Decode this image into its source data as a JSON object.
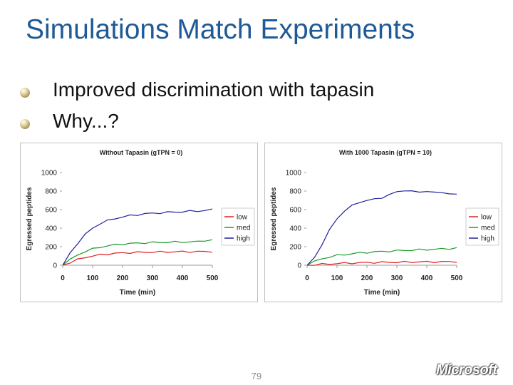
{
  "slide": {
    "title": "Simulations Match Experiments",
    "bullets": [
      {
        "text": "Improved discrimination with tapasin"
      },
      {
        "text": "Why...?"
      }
    ],
    "page_number": "79",
    "logo_text": "Microsoft"
  },
  "chart_data": [
    {
      "type": "line",
      "title": "Without Tapasin (gTPN = 0)",
      "xlabel": "Time (min)",
      "ylabel": "Egressed peptides",
      "xlim": [
        0,
        500
      ],
      "ylim": [
        0,
        1000
      ],
      "xticks": [
        0,
        100,
        200,
        300,
        400,
        500
      ],
      "yticks": [
        0,
        200,
        400,
        600,
        800,
        1000
      ],
      "legend_position": "right",
      "x": [
        0,
        25,
        50,
        75,
        100,
        125,
        150,
        175,
        200,
        225,
        250,
        275,
        300,
        325,
        350,
        375,
        400,
        425,
        450,
        475,
        500
      ],
      "series": [
        {
          "name": "low",
          "color": "#e02020",
          "values": [
            0,
            30,
            60,
            85,
            100,
            112,
            120,
            128,
            132,
            136,
            138,
            140,
            142,
            143,
            144,
            145,
            146,
            146,
            147,
            147,
            148
          ]
        },
        {
          "name": "med",
          "color": "#1a9a2a",
          "values": [
            0,
            60,
            110,
            150,
            175,
            195,
            210,
            220,
            228,
            234,
            238,
            242,
            245,
            247,
            249,
            250,
            251,
            252,
            253,
            268,
            270
          ]
        },
        {
          "name": "high",
          "color": "#2020a0",
          "values": [
            0,
            130,
            240,
            330,
            400,
            450,
            480,
            505,
            520,
            535,
            545,
            555,
            560,
            565,
            570,
            575,
            578,
            582,
            585,
            590,
            600
          ]
        }
      ]
    },
    {
      "type": "line",
      "title": "With 1000 Tapasin (gTPN = 10)",
      "xlabel": "Time (min)",
      "ylabel": "Egressed peptides",
      "xlim": [
        0,
        500
      ],
      "ylim": [
        0,
        1000
      ],
      "xticks": [
        0,
        100,
        200,
        300,
        400,
        500
      ],
      "yticks": [
        0,
        200,
        400,
        600,
        800,
        1000
      ],
      "legend_position": "right",
      "x": [
        0,
        25,
        50,
        75,
        100,
        125,
        150,
        175,
        200,
        225,
        250,
        275,
        300,
        325,
        350,
        375,
        400,
        425,
        450,
        475,
        500
      ],
      "series": [
        {
          "name": "low",
          "color": "#e02020",
          "values": [
            0,
            5,
            10,
            14,
            18,
            21,
            24,
            26,
            28,
            30,
            31,
            32,
            33,
            34,
            35,
            36,
            36,
            37,
            37,
            38,
            38
          ]
        },
        {
          "name": "med",
          "color": "#1a9a2a",
          "values": [
            0,
            40,
            70,
            90,
            105,
            115,
            125,
            132,
            138,
            143,
            148,
            152,
            156,
            160,
            163,
            166,
            169,
            172,
            175,
            180,
            185
          ]
        },
        {
          "name": "high",
          "color": "#2020a0",
          "values": [
            0,
            80,
            230,
            380,
            500,
            590,
            640,
            680,
            700,
            710,
            730,
            760,
            790,
            810,
            795,
            790,
            800,
            780,
            790,
            770,
            760
          ]
        }
      ]
    }
  ]
}
